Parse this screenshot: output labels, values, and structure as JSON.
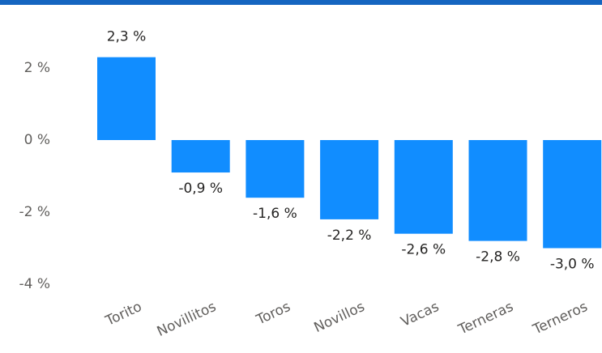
{
  "chart_data": {
    "type": "bar",
    "categories": [
      "Torito",
      "Novillitos",
      "Toros",
      "Novillos",
      "Vacas",
      "Terneras",
      "Terneros"
    ],
    "values": [
      2.3,
      -0.9,
      -1.6,
      -2.2,
      -2.6,
      -2.8,
      -3.0
    ],
    "value_labels": [
      "2,3 %",
      "-0,9 %",
      "-1,6 %",
      "-2,2 %",
      "-2,6 %",
      "-2,8 %",
      "-3,0 %"
    ],
    "color": "#118dff",
    "ylim": [
      -4.4,
      3
    ],
    "yticks": [
      {
        "value": 2,
        "label": "2 %"
      },
      {
        "value": 0,
        "label": "0 %"
      },
      {
        "value": -2,
        "label": "-2 %"
      },
      {
        "value": -4,
        "label": "-4 %"
      }
    ],
    "grid": false
  }
}
